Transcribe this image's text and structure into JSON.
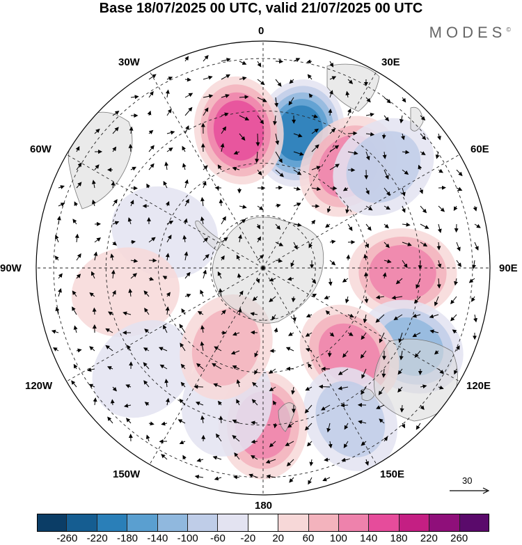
{
  "title": "Base 18/07/2025 00 UTC, valid 21/07/2025 00 UTC",
  "brand": "MODES",
  "brand_mark": "©",
  "lon_labels": {
    "l0": "0",
    "l30e": "30E",
    "l60e": "60E",
    "l90e": "90E",
    "l120e": "120E",
    "l150e": "150E",
    "l180": "180",
    "l150w": "150W",
    "l120w": "120W",
    "l90w": "90W",
    "l60w": "60W",
    "l30w": "30W"
  },
  "reference_vector": {
    "label": "30"
  },
  "colorbar": {
    "colors": [
      "#0b3d66",
      "#155d91",
      "#2a7fb8",
      "#5a9fd0",
      "#90b8de",
      "#bfcde8",
      "#e3e3f1",
      "#ffffff",
      "#f7d8d8",
      "#f3b3bd",
      "#ee82ac",
      "#e64c9b",
      "#c41f83",
      "#8f0f7a",
      "#5a0a6b"
    ],
    "ticks": [
      "-260",
      "-220",
      "-180",
      "-140",
      "-100",
      "-60",
      "-20",
      "20",
      "60",
      "100",
      "140",
      "180",
      "220",
      "260"
    ]
  },
  "chart_data": {
    "type": "heatmap",
    "projection": "south polar stereographic",
    "field": "anomaly shading with wind vectors",
    "levels": [
      -260,
      -220,
      -180,
      -140,
      -100,
      -60,
      -20,
      20,
      60,
      100,
      140,
      180,
      220,
      260
    ],
    "anomaly_centers": [
      {
        "lon": 15,
        "lat": -50,
        "value": -200
      },
      {
        "lon": -10,
        "lat": -50,
        "value": 180
      },
      {
        "lon": 40,
        "lat": -52,
        "value": 120
      },
      {
        "lon": 92,
        "lat": -50,
        "value": 140
      },
      {
        "lon": 50,
        "lat": -45,
        "value": -70
      },
      {
        "lon": 118,
        "lat": -42,
        "value": -110
      },
      {
        "lon": 135,
        "lat": -55,
        "value": 110
      },
      {
        "lon": 150,
        "lat": -40,
        "value": -80
      },
      {
        "lon": 180,
        "lat": -45,
        "value": 110
      },
      {
        "lon": -70,
        "lat": -60,
        "value": -60
      },
      {
        "lon": -100,
        "lat": -50,
        "value": 40
      },
      {
        "lon": -130,
        "lat": -45,
        "value": -50
      },
      {
        "lon": -165,
        "lat": -50,
        "value": -50
      },
      {
        "lon": -155,
        "lat": -65,
        "value": 80
      }
    ]
  }
}
